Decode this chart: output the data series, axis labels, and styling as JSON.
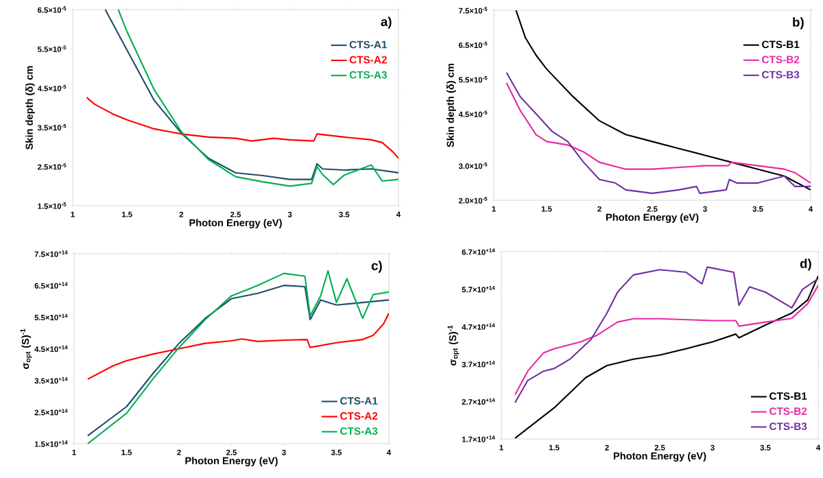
{
  "chart_data": [
    {
      "type": "line",
      "xlabel": "Photon Energy (eV)",
      "ylabel": "Skin depth (δ) cm",
      "annotations": [
        "a)"
      ],
      "legend": "top right",
      "xlim": [
        1,
        4
      ],
      "xticks": [
        1,
        1.5,
        2,
        2.5,
        3,
        3.5,
        4
      ],
      "ylim": [
        1.5e-05,
        6.5e-05
      ],
      "yticks": [
        {
          "value": 1.5e-05,
          "label": "1.5×10$^{-5}$"
        },
        {
          "value": 2.5e-05,
          "label": "2.5×10$^{-5}$"
        },
        {
          "value": 3.5e-05,
          "label": "3.5×10$^{-5}$"
        },
        {
          "value": 4.5e-05,
          "label": "4.5×10$^{-5}$"
        },
        {
          "value": 5.5e-05,
          "label": "5.5×10$^{-5}$"
        },
        {
          "value": 6.5e-05,
          "label": "6.5×10$^{-5}$"
        }
      ],
      "series": [
        {
          "name": "CTS-A1",
          "color": "#1f4e6b",
          "x": [
            1.3,
            1.5,
            1.75,
            2.0,
            2.25,
            2.5,
            2.75,
            3.0,
            3.2,
            3.25,
            3.3,
            3.5,
            3.75,
            4.0
          ],
          "values": [
            6.5e-05,
            5.47e-05,
            4.19e-05,
            3.35e-05,
            2.71e-05,
            2.34e-05,
            2.27e-05,
            2.17e-05,
            2.17e-05,
            2.57e-05,
            2.44e-05,
            2.41e-05,
            2.44e-05,
            2.34e-05
          ]
        },
        {
          "name": "CTS-A2",
          "color": "#ff0000",
          "x": [
            1.13,
            1.2,
            1.37,
            1.5,
            1.75,
            2.0,
            2.25,
            2.5,
            2.65,
            2.85,
            3.0,
            3.22,
            3.25,
            3.5,
            3.75,
            3.85,
            3.95,
            4.0
          ],
          "values": [
            4.26e-05,
            4.09e-05,
            3.84e-05,
            3.69e-05,
            3.46e-05,
            3.33e-05,
            3.25e-05,
            3.22e-05,
            3.15e-05,
            3.22e-05,
            3.18e-05,
            3.15e-05,
            3.33e-05,
            3.25e-05,
            3.18e-05,
            3.11e-05,
            2.87e-05,
            2.71e-05
          ]
        },
        {
          "name": "CTS-A3",
          "color": "#00b050",
          "x": [
            1.42,
            1.5,
            1.75,
            2.0,
            2.25,
            2.5,
            2.75,
            3.0,
            3.2,
            3.25,
            3.3,
            3.4,
            3.5,
            3.75,
            3.85,
            4.0
          ],
          "values": [
            6.5e-05,
            5.94e-05,
            4.46e-05,
            3.39e-05,
            2.68e-05,
            2.24e-05,
            2.11e-05,
            2e-05,
            2.07e-05,
            2.5e-05,
            2.3e-05,
            2.04e-05,
            2.28e-05,
            2.54e-05,
            2.13e-05,
            2.17e-05
          ]
        }
      ]
    },
    {
      "type": "line",
      "xlabel": "Photon Energy (eV)",
      "ylabel": "Skin depth (δ) cm",
      "annotations": [
        "b)"
      ],
      "legend": "top right",
      "xlim": [
        1,
        4
      ],
      "xticks": [
        1,
        1.5,
        2,
        2.5,
        3,
        3.5,
        4
      ],
      "ylim": [
        2e-05,
        7.5e-05
      ],
      "yticks": [
        {
          "value": 2e-05,
          "label": "2.0×10$^{-5}$"
        },
        {
          "value": 3e-05,
          "label": "3.0×10$^{-5}$"
        },
        {
          "value": 4.5e-05,
          "label": "4.5×10$^{-5}$"
        },
        {
          "value": 5.5e-05,
          "label": "5.5×10$^{-5}$"
        },
        {
          "value": 6.5e-05,
          "label": "6.5×10$^{-5}$"
        },
        {
          "value": 7.5e-05,
          "label": "7.5×10$^{-5}$"
        }
      ],
      "series": [
        {
          "name": "CTS-B1",
          "color": "#000000",
          "x": [
            1.21,
            1.3,
            1.4,
            1.5,
            1.75,
            2.0,
            2.25,
            2.5,
            2.75,
            3.0,
            3.25,
            3.5,
            3.75,
            4.0
          ],
          "values": [
            7.5e-05,
            6.7e-05,
            6.2e-05,
            5.8e-05,
            5e-05,
            4.3e-05,
            3.9e-05,
            3.7e-05,
            3.5e-05,
            3.3e-05,
            3.1e-05,
            2.9e-05,
            2.7e-05,
            2.3e-05
          ]
        },
        {
          "name": "CTS-B2",
          "color": "#e62aa5",
          "x": [
            1.12,
            1.25,
            1.4,
            1.5,
            1.7,
            1.85,
            2.0,
            2.25,
            2.5,
            3.0,
            3.22,
            3.25,
            3.5,
            3.75,
            3.85,
            4.0
          ],
          "values": [
            5.4e-05,
            4.6e-05,
            3.9e-05,
            3.7e-05,
            3.6e-05,
            3.4e-05,
            3.1e-05,
            2.9e-05,
            2.9e-05,
            3e-05,
            3e-05,
            3.1e-05,
            3e-05,
            2.9e-05,
            2.8e-05,
            2.5e-05
          ]
        },
        {
          "name": "CTS-B3",
          "color": "#7030a0",
          "x": [
            1.12,
            1.25,
            1.4,
            1.55,
            1.7,
            1.85,
            2.0,
            2.15,
            2.25,
            2.5,
            2.75,
            2.92,
            2.95,
            3.2,
            3.23,
            3.3,
            3.5,
            3.75,
            3.85,
            4.0
          ],
          "values": [
            5.7e-05,
            5e-05,
            4.5e-05,
            4e-05,
            3.7e-05,
            3.1e-05,
            2.6e-05,
            2.5e-05,
            2.3e-05,
            2.2e-05,
            2.3e-05,
            2.4e-05,
            2.2e-05,
            2.3e-05,
            2.6e-05,
            2.5e-05,
            2.5e-05,
            2.7e-05,
            2.4e-05,
            2.4e-05
          ]
        }
      ]
    },
    {
      "type": "line",
      "xlabel": "Photon Energy (eV)",
      "ylabel": "σ$_{opt}$ (S)$^{-1}$",
      "annotations": [
        "c)"
      ],
      "legend": "bottom right",
      "xlim": [
        1,
        4
      ],
      "xticks": [
        1,
        1.5,
        2,
        2.5,
        3,
        3.5,
        4
      ],
      "ylim": [
        150000000000000.0,
        750000000000000.0
      ],
      "yticks": [
        {
          "value": 150000000000000.0,
          "label": "1.5×10$^{+14}$"
        },
        {
          "value": 250000000000000.0,
          "label": "2.5×10$^{+14}$"
        },
        {
          "value": 350000000000000.0,
          "label": "3.5×10$^{+14}$"
        },
        {
          "value": 450000000000000.0,
          "label": "4.5×10$^{+14}$"
        },
        {
          "value": 550000000000000.0,
          "label": "5.5×10$^{+14}$"
        },
        {
          "value": 650000000000000.0,
          "label": "6.5×10$^{+14}$"
        },
        {
          "value": 750000000000000.0,
          "label": "7.5×10$^{+14}$"
        }
      ],
      "series": [
        {
          "name": "CTS-A1",
          "color": "#1f4e6b",
          "x": [
            1.13,
            1.5,
            1.75,
            2.0,
            2.25,
            2.5,
            2.75,
            3.0,
            3.2,
            3.25,
            3.35,
            3.5,
            3.75,
            4.0
          ],
          "values": [
            175000000000000.0,
            267000000000000.0,
            371000000000000.0,
            467000000000000.0,
            546000000000000.0,
            608000000000000.0,
            625000000000000.0,
            650000000000000.0,
            646000000000000.0,
            542000000000000.0,
            604000000000000.0,
            588000000000000.0,
            596000000000000.0,
            604000000000000.0
          ]
        },
        {
          "name": "CTS-A2",
          "color": "#ff0000",
          "x": [
            1.13,
            1.37,
            1.5,
            1.75,
            2.0,
            2.25,
            2.5,
            2.6,
            2.75,
            3.0,
            3.22,
            3.25,
            3.5,
            3.75,
            3.85,
            3.95,
            4.0
          ],
          "values": [
            354000000000000.0,
            396000000000000.0,
            412000000000000.0,
            433000000000000.0,
            450000000000000.0,
            467000000000000.0,
            475000000000000.0,
            481000000000000.0,
            473000000000000.0,
            477000000000000.0,
            479000000000000.0,
            454000000000000.0,
            469000000000000.0,
            479000000000000.0,
            492000000000000.0,
            529000000000000.0,
            562000000000000.0
          ]
        },
        {
          "name": "CTS-A3",
          "color": "#00b050",
          "x": [
            1.13,
            1.5,
            1.75,
            2.0,
            2.25,
            2.5,
            2.75,
            3.0,
            3.2,
            3.25,
            3.35,
            3.42,
            3.5,
            3.6,
            3.75,
            3.85,
            4.0
          ],
          "values": [
            150000000000000.0,
            246000000000000.0,
            354000000000000.0,
            454000000000000.0,
            542000000000000.0,
            617000000000000.0,
            650000000000000.0,
            688000000000000.0,
            679000000000000.0,
            554000000000000.0,
            617000000000000.0,
            696000000000000.0,
            596000000000000.0,
            671000000000000.0,
            546000000000000.0,
            621000000000000.0,
            629000000000000.0
          ]
        }
      ]
    },
    {
      "type": "line",
      "xlabel": "Photon Energy (eV)",
      "ylabel": "σ$_{opt}$ (S)$^{-1}$",
      "annotations": [
        "d)"
      ],
      "legend": "bottom right",
      "xlim": [
        1,
        4
      ],
      "xticks": [
        1,
        1.5,
        2,
        2.5,
        3,
        3.5,
        4
      ],
      "ylim": [
        170000000000000.0,
        670000000000000.0
      ],
      "yticks": [
        {
          "value": 170000000000000.0,
          "label": "1.7×10$^{+14}$"
        },
        {
          "value": 270000000000000.0,
          "label": "2.7×10$^{+14}$"
        },
        {
          "value": 370000000000000.0,
          "label": "3.7×10$^{+14}$"
        },
        {
          "value": 470000000000000.0,
          "label": "4.7×10$^{+14}$"
        },
        {
          "value": 570000000000000.0,
          "label": "5.7×10$^{+14}$"
        },
        {
          "value": 670000000000000.0,
          "label": "6.7×10$^{+14}$"
        }
      ],
      "series": [
        {
          "name": "CTS-B1",
          "color": "#000000",
          "x": [
            1.13,
            1.5,
            1.8,
            2.0,
            2.25,
            2.5,
            2.75,
            3.0,
            3.22,
            3.25,
            3.5,
            3.75,
            3.9,
            4.0
          ],
          "values": [
            172000000000000.0,
            253000000000000.0,
            334000000000000.0,
            366000000000000.0,
            383000000000000.0,
            394000000000000.0,
            411000000000000.0,
            429000000000000.0,
            450000000000000.0,
            440000000000000.0,
            474000000000000.0,
            506000000000000.0,
            541000000000000.0,
            605000000000000.0
          ]
        },
        {
          "name": "CTS-B2",
          "color": "#e62aa5",
          "x": [
            1.13,
            1.25,
            1.4,
            1.5,
            1.75,
            1.9,
            2.1,
            2.25,
            2.5,
            3.0,
            3.22,
            3.25,
            3.5,
            3.75,
            3.9,
            4.0
          ],
          "values": [
            288000000000000.0,
            351000000000000.0,
            400000000000000.0,
            411000000000000.0,
            429000000000000.0,
            446000000000000.0,
            482000000000000.0,
            491000000000000.0,
            491000000000000.0,
            486000000000000.0,
            486000000000000.0,
            471000000000000.0,
            482000000000000.0,
            492000000000000.0,
            531000000000000.0,
            580000000000000.0
          ]
        },
        {
          "name": "CTS-B3",
          "color": "#7030a0",
          "x": [
            1.13,
            1.25,
            1.4,
            1.5,
            1.65,
            1.85,
            2.0,
            2.1,
            2.25,
            2.5,
            2.75,
            2.9,
            2.95,
            3.2,
            3.25,
            3.35,
            3.5,
            3.75,
            3.85,
            4.0
          ],
          "values": [
            267000000000000.0,
            326000000000000.0,
            351000000000000.0,
            358000000000000.0,
            383000000000000.0,
            436000000000000.0,
            506000000000000.0,
            562000000000000.0,
            608000000000000.0,
            622000000000000.0,
            615000000000000.0,
            584000000000000.0,
            629000000000000.0,
            615000000000000.0,
            527000000000000.0,
            576000000000000.0,
            562000000000000.0,
            520000000000000.0,
            569000000000000.0,
            598000000000000.0
          ]
        }
      ]
    }
  ]
}
